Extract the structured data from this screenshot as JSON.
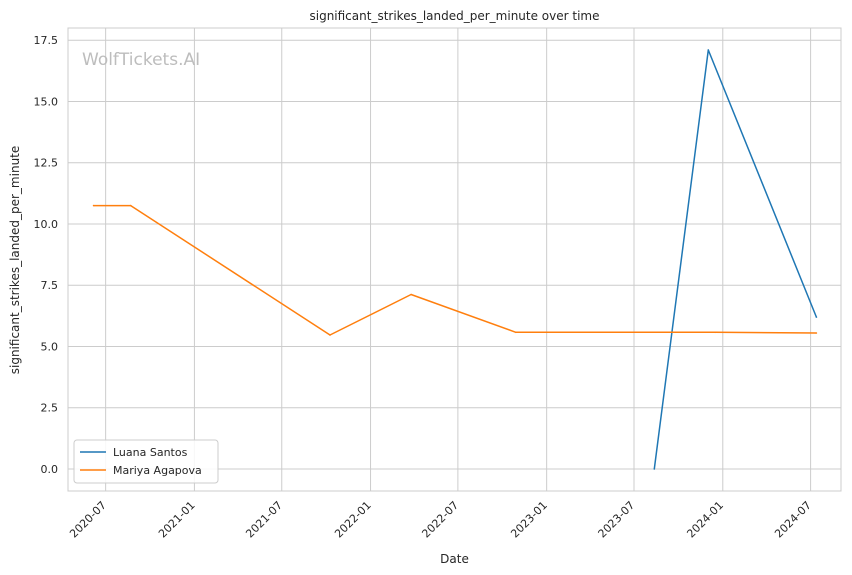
{
  "chart_data": {
    "type": "line",
    "title": "significant_strikes_landed_per_minute over time",
    "xlabel": "Date",
    "ylabel": "significant_strikes_landed_per_minute",
    "watermark": "WolfTickets.AI",
    "x_ticks": [
      "2020-07",
      "2021-01",
      "2021-07",
      "2022-01",
      "2022-07",
      "2023-01",
      "2023-07",
      "2024-01",
      "2024-07"
    ],
    "y_ticks": [
      "0.0",
      "2.5",
      "5.0",
      "7.5",
      "10.0",
      "12.5",
      "15.0",
      "17.5"
    ],
    "xlim": [
      "2020-04-14",
      "2024-09-02"
    ],
    "ylim": [
      -0.9,
      18.0
    ],
    "grid": true,
    "legend_position": "lower-left",
    "series": [
      {
        "name": "Luana Santos",
        "color": "#1f77b4",
        "points": [
          {
            "x": "2023-08-12",
            "y": 0.0
          },
          {
            "x": "2023-12-02",
            "y": 17.1
          },
          {
            "x": "2024-07-13",
            "y": 6.2
          }
        ]
      },
      {
        "name": "Mariya Agapova",
        "color": "#ff7f0e",
        "points": [
          {
            "x": "2020-06-06",
            "y": 10.75
          },
          {
            "x": "2020-08-22",
            "y": 10.75
          },
          {
            "x": "2021-10-09",
            "y": 5.47
          },
          {
            "x": "2022-03-26",
            "y": 7.12
          },
          {
            "x": "2022-10-29",
            "y": 5.58
          },
          {
            "x": "2023-12-16",
            "y": 5.58
          },
          {
            "x": "2024-07-13",
            "y": 5.55
          }
        ]
      }
    ]
  }
}
